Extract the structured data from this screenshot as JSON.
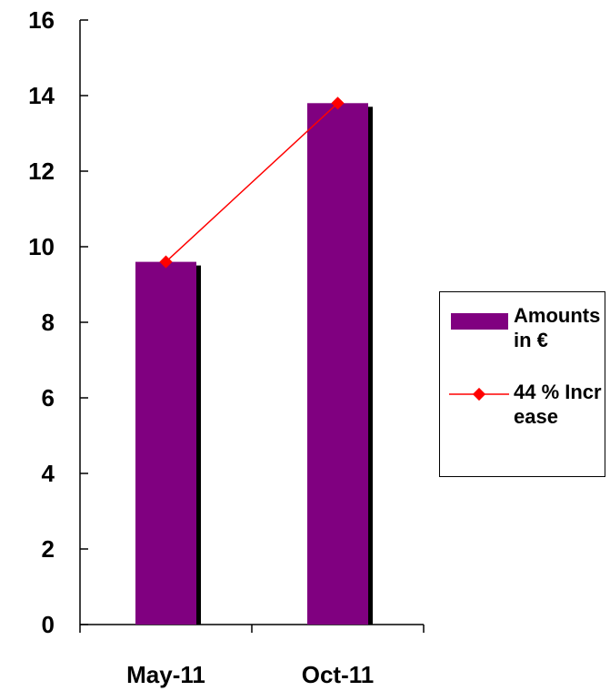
{
  "chart_data": {
    "type": "bar",
    "categories": [
      "May-11",
      "Oct-11"
    ],
    "series": [
      {
        "name": "Amounts in €",
        "type": "bar",
        "values": [
          9.6,
          13.8
        ],
        "color": "#800080"
      },
      {
        "name": "44 % Increase",
        "type": "line",
        "values": [
          9.6,
          13.8
        ],
        "color": "#ff0000"
      }
    ],
    "ylim": [
      0,
      16
    ],
    "yticks": [
      0,
      2,
      4,
      6,
      8,
      10,
      12,
      14,
      16
    ],
    "title": "",
    "xlabel": "",
    "ylabel": "",
    "grid": false,
    "legend_position": "right"
  },
  "legend": {
    "items": [
      {
        "label": "Amounts in €",
        "kind": "bar",
        "color": "#800080"
      },
      {
        "label": "44 % Increase",
        "kind": "line",
        "color": "#ff0000"
      }
    ]
  },
  "colors": {
    "bar": "#800080",
    "bar_shadow": "#000000",
    "line": "#ff0000",
    "axis": "#000000"
  }
}
